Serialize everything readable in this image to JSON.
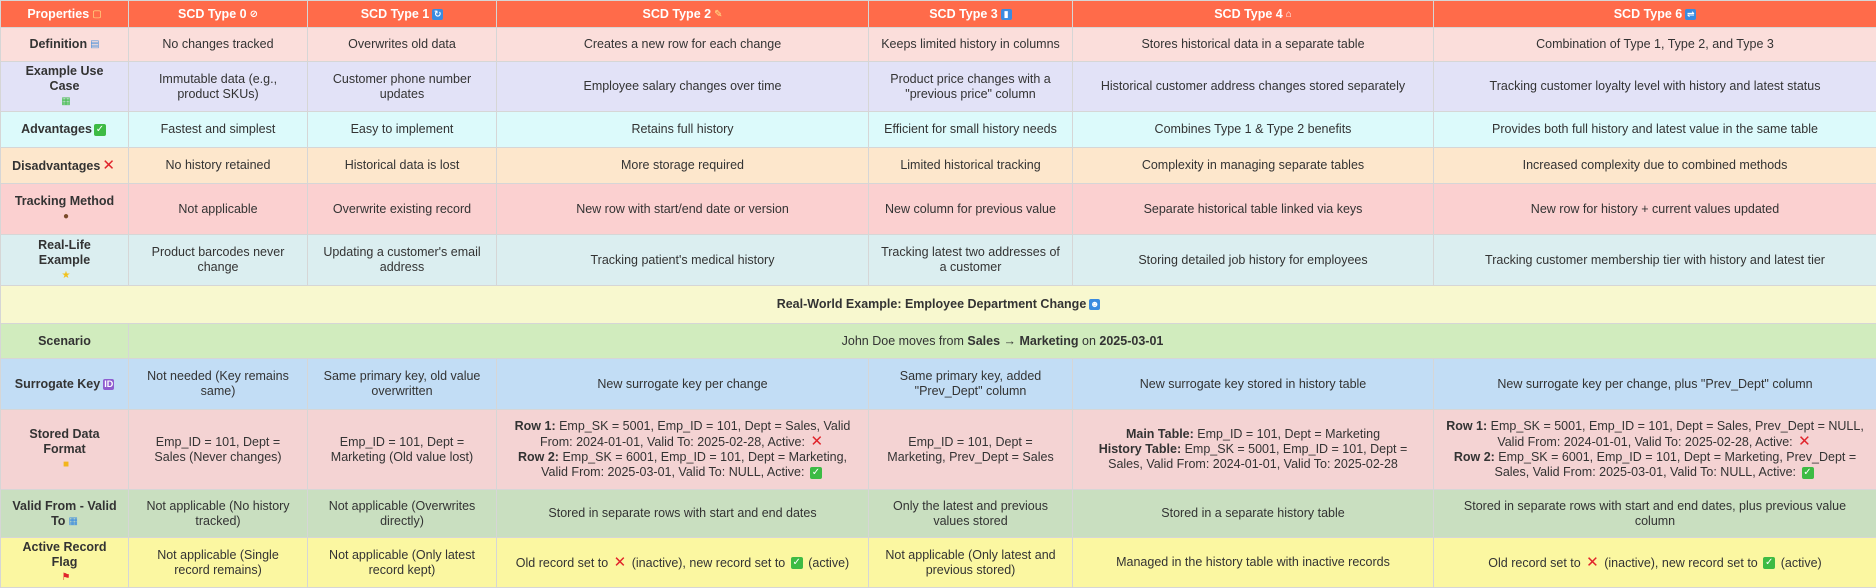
{
  "header": {
    "properties": "Properties",
    "type0": "SCD Type 0",
    "type1": "SCD Type 1",
    "type2": "SCD Type 2",
    "type3": "SCD Type 3",
    "type4": "SCD Type 4",
    "type6": "SCD Type 6"
  },
  "rows": {
    "definition": {
      "label": "Definition",
      "type0": "No changes tracked",
      "type1": "Overwrites old data",
      "type2": "Creates a new row for each change",
      "type3": "Keeps limited history in columns",
      "type4": "Stores historical data in a separate table",
      "type6": "Combination of Type 1, Type 2, and Type 3"
    },
    "use_case": {
      "label": "Example Use Case",
      "type0": "Immutable data (e.g., product SKUs)",
      "type1": "Customer phone number updates",
      "type2": "Employee salary changes over time",
      "type3": "Product price changes with a \"previous price\" column",
      "type4": "Historical customer address changes stored separately",
      "type6": "Tracking customer loyalty level with history and latest status"
    },
    "advantages": {
      "label": "Advantages",
      "type0": "Fastest and simplest",
      "type1": "Easy to implement",
      "type2": "Retains full history",
      "type3": "Efficient for small history needs",
      "type4": "Combines Type 1 & Type 2 benefits",
      "type6": "Provides both full history and latest value in the same table"
    },
    "disadvantages": {
      "label": "Disadvantages",
      "type0": "No history retained",
      "type1": "Historical data is lost",
      "type2": "More storage required",
      "type3": "Limited historical tracking",
      "type4": "Complexity in managing separate tables",
      "type6": "Increased complexity due to combined methods"
    },
    "tracking": {
      "label": "Tracking Method",
      "type0": "Not applicable",
      "type1": "Overwrite existing record",
      "type2": "New row with start/end date or version",
      "type3": "New column for previous value",
      "type4": "Separate historical table linked via keys",
      "type6": "New row for history + current values updated"
    },
    "real_life": {
      "label": "Real-Life Example",
      "type0": "Product barcodes never change",
      "type1": "Updating a customer's email address",
      "type2": "Tracking patient's medical history",
      "type3": "Tracking latest two addresses of a customer",
      "type4": "Storing detailed job history for employees",
      "type6": "Tracking customer membership tier with history and latest tier"
    },
    "band": {
      "title": "Real-World Example: Employee Department Change"
    },
    "scenario": {
      "label": "Scenario",
      "prefix": "John Doe moves from ",
      "route": "Sales → Marketing",
      "middle": " on ",
      "date": "2025-03-01"
    },
    "surrogate": {
      "label": "Surrogate Key",
      "type0": "Not needed (Key remains same)",
      "type1": "Same primary key, old value overwritten",
      "type2": "New surrogate key per change",
      "type3": "Same primary key, added \"Prev_Dept\" column",
      "type4": "New surrogate key stored in history table",
      "type6": "New surrogate key per change, plus \"Prev_Dept\" column"
    },
    "format": {
      "label": "Stored Data Format",
      "type0": "Emp_ID = 101, Dept = Sales (Never changes)",
      "type1": "Emp_ID = 101, Dept = Marketing (Old value lost)",
      "type2_row1_label": "Row 1:",
      "type2_row1": " Emp_SK = 5001, Emp_ID = 101, Dept = Sales, Valid From: 2024-01-01, Valid To: 2025-02-28, Active: ",
      "type2_row2_label": "Row 2:",
      "type2_row2": " Emp_SK = 6001, Emp_ID = 101, Dept = Marketing, Valid From: 2025-03-01, Valid To: NULL, Active: ",
      "type3": "Emp_ID = 101, Dept = Marketing, Prev_Dept = Sales",
      "type4_main_label": "Main Table:",
      "type4_main": " Emp_ID = 101, Dept = Marketing",
      "type4_hist_label": "History Table:",
      "type4_hist": " Emp_SK = 5001, Emp_ID = 101, Dept = Sales, Valid From: 2024-01-01, Valid To: 2025-02-28",
      "type6_row1_label": "Row 1:",
      "type6_row1": " Emp_SK = 5001, Emp_ID = 101, Dept = Sales, Prev_Dept = NULL, Valid From: 2024-01-01, Valid To: 2025-02-28, Active: ",
      "type6_row2_label": "Row 2:",
      "type6_row2": " Emp_SK = 6001, Emp_ID = 101, Dept = Marketing, Prev_Dept = Sales, Valid From: 2025-03-01, Valid To: NULL, Active: "
    },
    "valid": {
      "label": "Valid From - Valid To",
      "type0": "Not applicable (No history tracked)",
      "type1": "Not applicable (Overwrites directly)",
      "type2": "Stored in separate rows with start and end dates",
      "type3": "Only the latest and previous values stored",
      "type4": "Stored in a separate history table",
      "type6": "Stored in separate rows with start and end dates, plus previous value column"
    },
    "flag": {
      "label": "Active Record Flag",
      "type0": "Not applicable (Single record remains)",
      "type1": "Not applicable (Only latest record kept)",
      "type2_a": "Old record set to ",
      "type2_b": " (inactive), new record set to ",
      "type2_c": " (active)",
      "type3": "Not applicable (Only latest and previous stored)",
      "type4": "Managed in the history table with inactive records",
      "type6_a": "Old record set to ",
      "type6_b": " (inactive), new record set to ",
      "type6_c": " (active)"
    }
  },
  "colors": {
    "header": "#ff6b4a",
    "inactive": "#e0242b",
    "active": "#3dbb44"
  }
}
